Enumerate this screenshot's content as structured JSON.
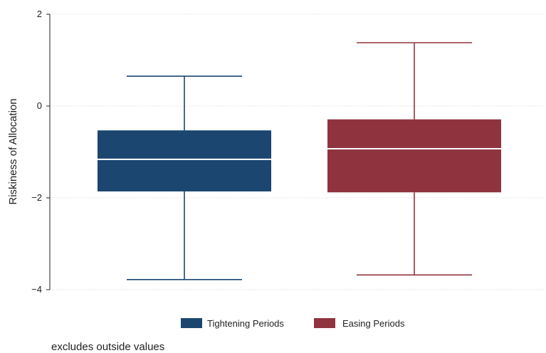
{
  "chart_data": {
    "type": "box",
    "ylabel": "Riskiness of Allocation",
    "xlabel": "",
    "ylim": [
      -4,
      2
    ],
    "yticks": [
      {
        "value": 2,
        "label": "2"
      },
      {
        "value": 0,
        "label": "0"
      },
      {
        "value": -2,
        "label": "−2"
      },
      {
        "value": -4,
        "label": "−4"
      }
    ],
    "grid": true,
    "legend_position": "bottom",
    "note": "excludes outside values",
    "series": [
      {
        "name": "Tightening Periods",
        "color": "#1a4670",
        "whisker_low": -3.78,
        "q1": -1.86,
        "median": -1.16,
        "q3": -0.53,
        "whisker_high": 0.65
      },
      {
        "name": "Easing Periods",
        "color": "#8f343f",
        "whisker_low": -3.68,
        "q1": -1.88,
        "median": -0.93,
        "q3": -0.29,
        "whisker_high": 1.38
      }
    ]
  }
}
